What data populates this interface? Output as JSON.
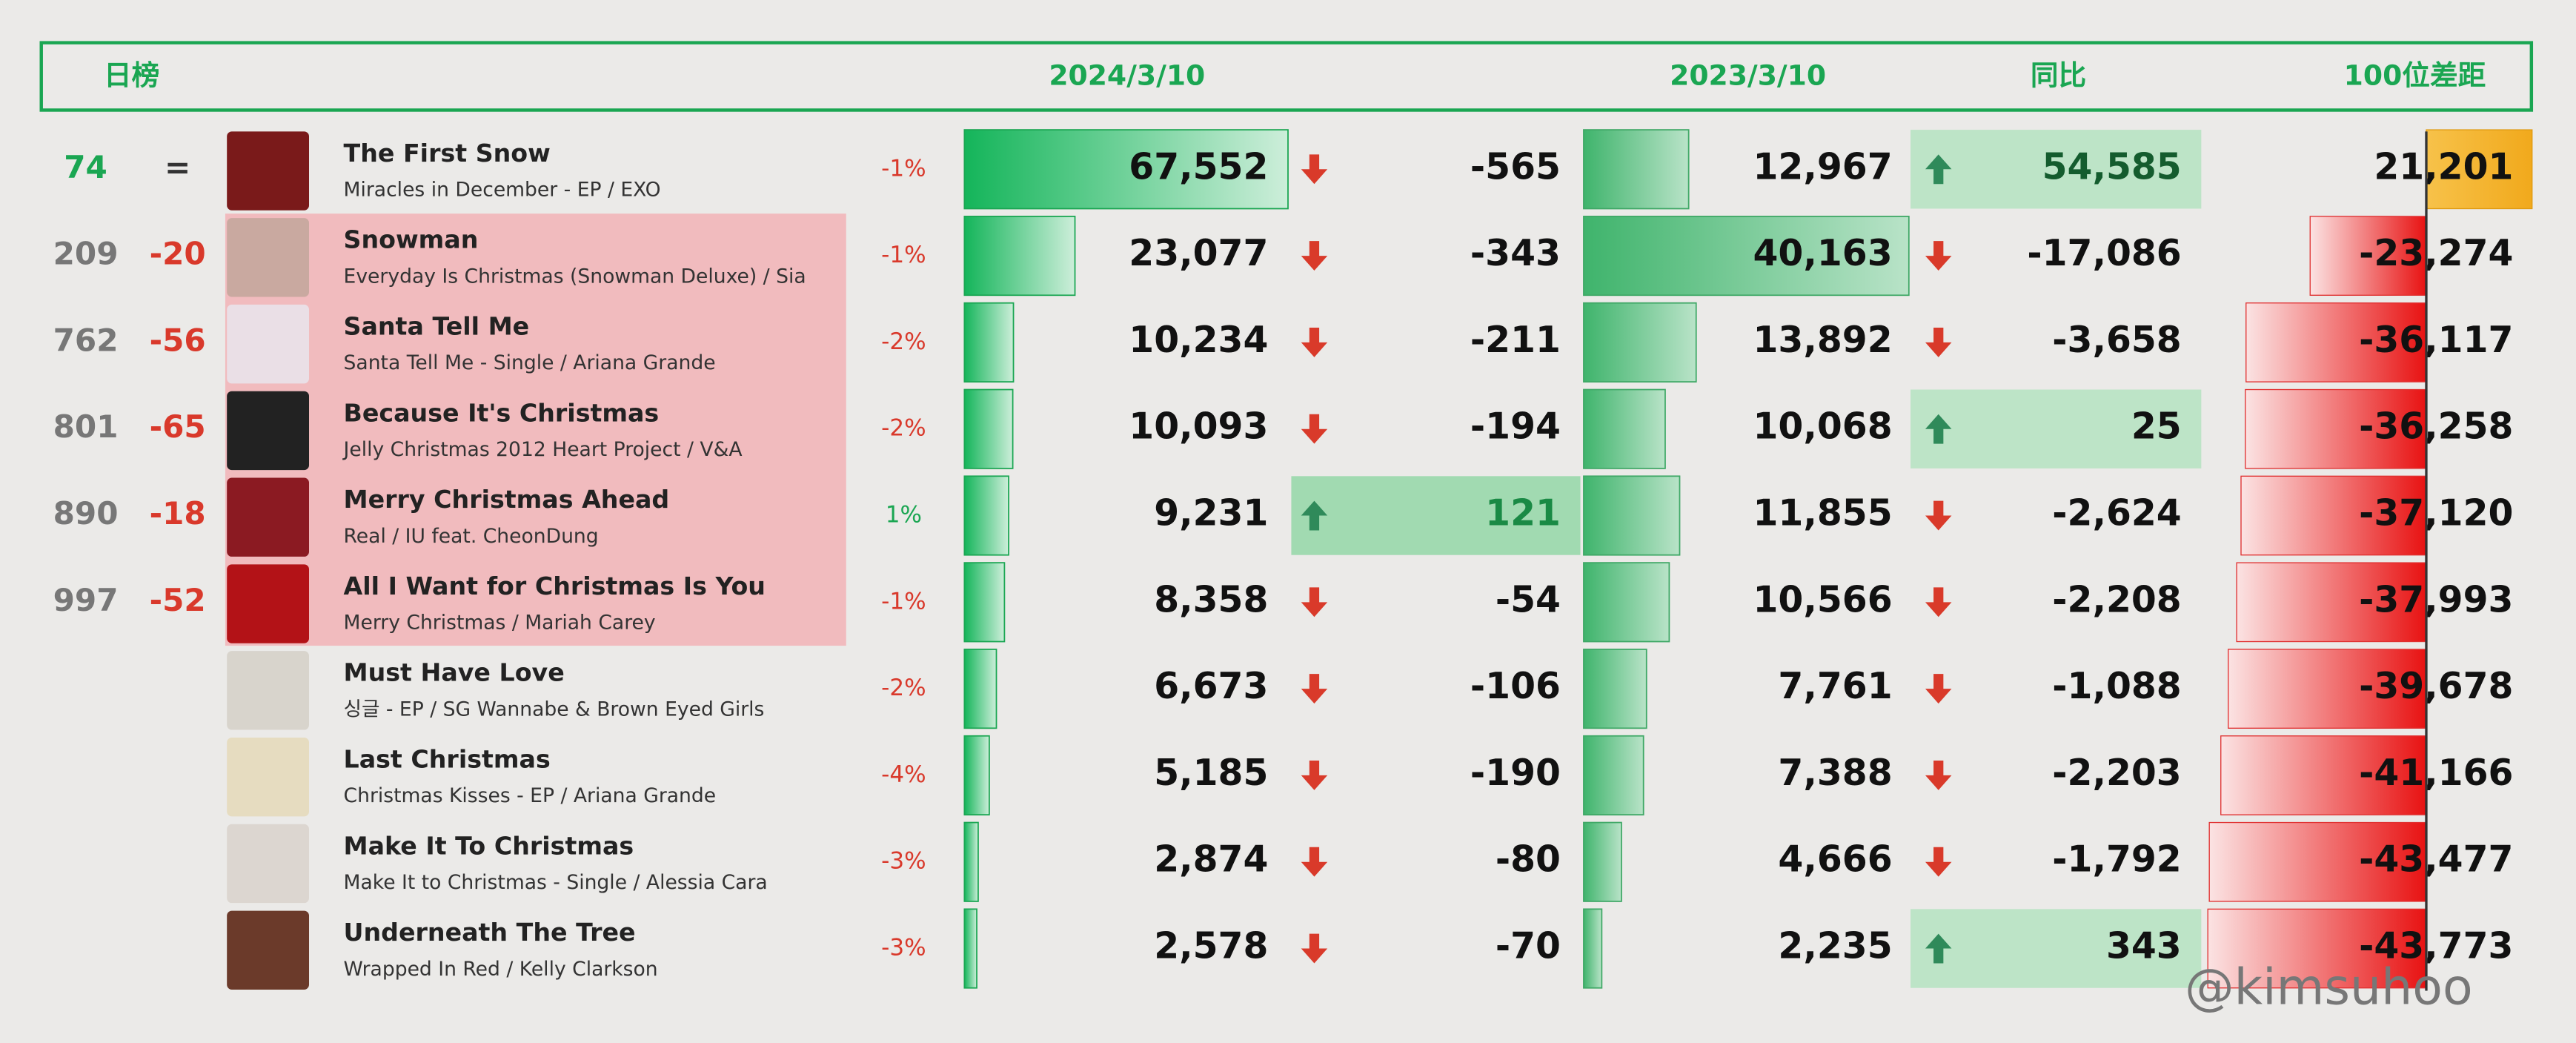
{
  "header": {
    "title": "日榜",
    "col_2024": "2024/3/10",
    "col_2023": "2023/3/10",
    "yoy": "同比",
    "gap": "100位差距"
  },
  "rows": [
    {
      "rank": "74",
      "change": "=",
      "title": "The First Snow",
      "subtitle": "Miracles in December - EP / EXO",
      "pct": "-1%",
      "plays_2024": "67,552",
      "diff": "-565",
      "plays_2023": "12,967",
      "yoy": "54,585",
      "gap": "21,201"
    },
    {
      "rank": "209",
      "change": "-20",
      "title": "Snowman",
      "subtitle": "Everyday Is Christmas (Snowman Deluxe) / Sia",
      "pct": "-1%",
      "plays_2024": "23,077",
      "diff": "-343",
      "plays_2023": "40,163",
      "yoy": "-17,086",
      "gap": "-23,274"
    },
    {
      "rank": "762",
      "change": "-56",
      "title": "Santa Tell Me",
      "subtitle": "Santa Tell Me - Single / Ariana Grande",
      "pct": "-2%",
      "plays_2024": "10,234",
      "diff": "-211",
      "plays_2023": "13,892",
      "yoy": "-3,658",
      "gap": "-36,117"
    },
    {
      "rank": "801",
      "change": "-65",
      "title": "Because It's Christmas",
      "subtitle": "Jelly Christmas 2012 Heart Project  / V&A",
      "pct": "-2%",
      "plays_2024": "10,093",
      "diff": "-194",
      "plays_2023": "10,068",
      "yoy": "25",
      "gap": "-36,258"
    },
    {
      "rank": "890",
      "change": "-18",
      "title": "Merry Christmas Ahead",
      "subtitle": "Real / IU feat. CheonDung",
      "pct": "1%",
      "plays_2024": "9,231",
      "diff": "121",
      "plays_2023": "11,855",
      "yoy": "-2,624",
      "gap": "-37,120"
    },
    {
      "rank": "997",
      "change": "-52",
      "title": "All I Want for Christmas Is You",
      "subtitle": "Merry Christmas / Mariah Carey",
      "pct": "-1%",
      "plays_2024": "8,358",
      "diff": "-54",
      "plays_2023": "10,566",
      "yoy": "-2,208",
      "gap": "-37,993"
    },
    {
      "title": "Must Have Love",
      "subtitle": "싱글 - EP / SG Wannabe & Brown Eyed Girls",
      "pct": "-2%",
      "plays_2024": "6,673",
      "diff": "-106",
      "plays_2023": "7,761",
      "yoy": "-1,088",
      "gap": "-39,678"
    },
    {
      "title": "Last Christmas",
      "subtitle": "Christmas Kisses - EP / Ariana Grande",
      "pct": "-4%",
      "plays_2024": "5,185",
      "diff": "-190",
      "plays_2023": "7,388",
      "yoy": "-2,203",
      "gap": "-41,166"
    },
    {
      "title": "Make It To Christmas",
      "subtitle": "Make It to Christmas - Single / Alessia Cara",
      "pct": "-3%",
      "plays_2024": "2,874",
      "diff": "-80",
      "plays_2023": "4,666",
      "yoy": "-1,792",
      "gap": "-43,477"
    },
    {
      "title": "Underneath The Tree",
      "subtitle": "Wrapped In Red / Kelly Clarkson",
      "pct": "-3%",
      "plays_2024": "2,578",
      "diff": "-70",
      "plays_2023": "2,235",
      "yoy": "343",
      "gap": "-43,773"
    }
  ],
  "watermark": "@kimsuhoo"
}
